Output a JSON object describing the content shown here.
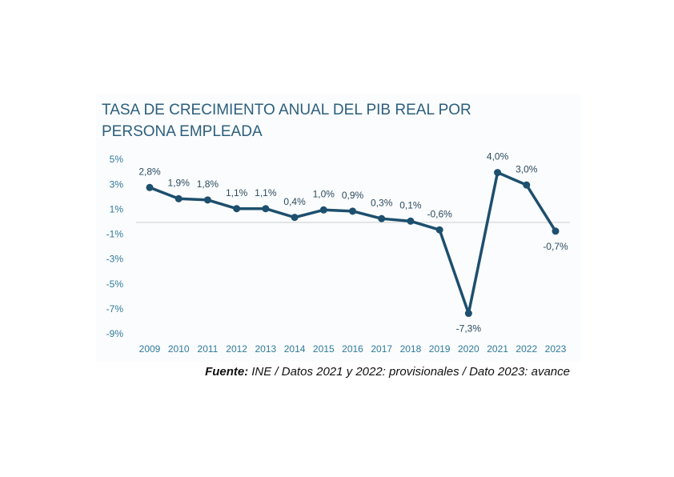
{
  "chart_data": {
    "type": "line",
    "title": "TASA DE CRECIMIENTO ANUAL DEL PIB REAL POR PERSONA EMPLEADA",
    "categories": [
      "2009",
      "2010",
      "2011",
      "2012",
      "2013",
      "2014",
      "2015",
      "2016",
      "2017",
      "2018",
      "2019",
      "2020",
      "2021",
      "2022",
      "2023"
    ],
    "series": [
      {
        "color": "#1d4f6e",
        "values": [
          2.8,
          1.9,
          1.8,
          1.1,
          1.1,
          0.4,
          1.0,
          0.9,
          0.3,
          0.1,
          -0.6,
          -7.3,
          4.0,
          3.0,
          -0.7
        ],
        "value_labels": [
          "2,8%",
          "1,9%",
          "1,8%",
          "1,1%",
          "1,1%",
          "0,4%",
          "1,0%",
          "0,9%",
          "0,3%",
          "0,1%",
          "-0,6%",
          "-7,3%",
          "4,0%",
          "3,0%",
          "-0,7%"
        ]
      }
    ],
    "ylim": [
      -9,
      5
    ],
    "yticks": [
      {
        "value": 5,
        "label": "5%"
      },
      {
        "value": 3,
        "label": "3%"
      },
      {
        "value": 1,
        "label": "1%"
      },
      {
        "value": -1,
        "label": "-1%"
      },
      {
        "value": -3,
        "label": "-3%"
      },
      {
        "value": -5,
        "label": "-5%"
      },
      {
        "value": -7,
        "label": "-7%"
      },
      {
        "value": -9,
        "label": "-9%"
      }
    ],
    "grid": false,
    "source_label": "Fuente:",
    "source": "INE / Datos 2021 y 2022: provisionales / Dato 2023: avance"
  }
}
